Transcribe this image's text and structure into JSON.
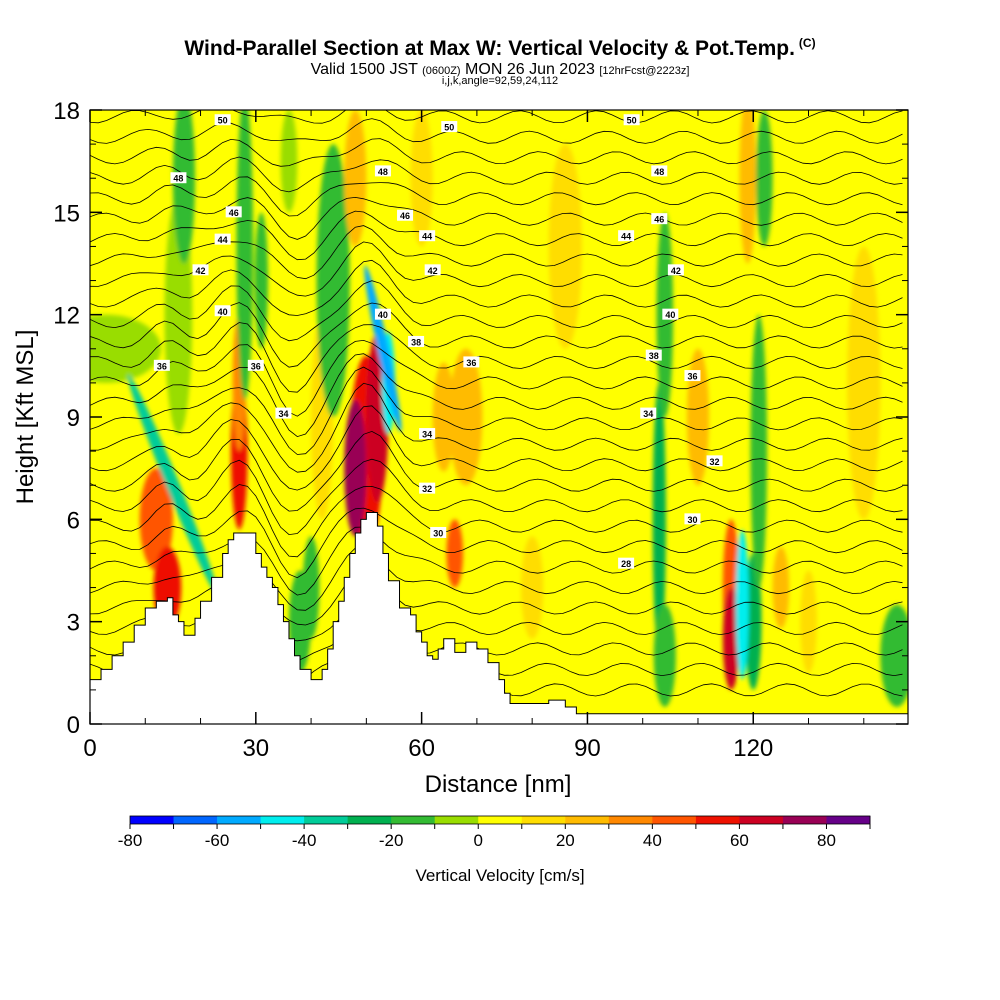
{
  "header": {
    "title": "Wind-Parallel Section at Max W: Vertical Velocity & Pot.Temp.",
    "copyright": "(C)",
    "valid_prefix": "Valid 1500 JST",
    "valid_utc": "(0600Z)",
    "valid_date": "MON 26 Jun 2023",
    "forecast": "[12hrFcst@2223z]",
    "params": "i,j,k,angle=92,59,24,112"
  },
  "chart_data": {
    "type": "heatmap",
    "xlabel": "Distance [nm]",
    "ylabel": "Height [Kft MSL]",
    "xlim": [
      0,
      148
    ],
    "ylim": [
      0,
      18
    ],
    "x_ticks": [
      0,
      30,
      60,
      90,
      120
    ],
    "y_ticks": [
      0,
      3,
      6,
      9,
      12,
      15,
      18
    ],
    "colorbar": {
      "label": "Vertical Velocity [cm/s]",
      "min": -80,
      "max": 90,
      "step": 10,
      "tick_labels": [
        -80,
        -60,
        -40,
        -20,
        0,
        20,
        40,
        60,
        80
      ],
      "colors": [
        "#0000ff",
        "#0066ff",
        "#00aaff",
        "#00eeee",
        "#00cc99",
        "#00b050",
        "#33bb33",
        "#99dd00",
        "#ffff00",
        "#ffdd00",
        "#ffbb00",
        "#ff8800",
        "#ff5500",
        "#ee1100",
        "#cc0022",
        "#990055",
        "#660088"
      ]
    },
    "terrain": [
      [
        0,
        1.3
      ],
      [
        2,
        1.6
      ],
      [
        4,
        2.0
      ],
      [
        6,
        2.4
      ],
      [
        8,
        2.9
      ],
      [
        10,
        3.4
      ],
      [
        12,
        3.6
      ],
      [
        14,
        3.7
      ],
      [
        15,
        3.2
      ],
      [
        16,
        3.0
      ],
      [
        17,
        2.6
      ],
      [
        18,
        2.6
      ],
      [
        19,
        3.1
      ],
      [
        20,
        3.6
      ],
      [
        22,
        4.3
      ],
      [
        24,
        5.0
      ],
      [
        25,
        5.4
      ],
      [
        26,
        5.6
      ],
      [
        29,
        5.6
      ],
      [
        30,
        5.0
      ],
      [
        31,
        4.6
      ],
      [
        32,
        4.3
      ],
      [
        33,
        4.0
      ],
      [
        34,
        3.5
      ],
      [
        35,
        3.0
      ],
      [
        36,
        2.5
      ],
      [
        37,
        2.0
      ],
      [
        38,
        1.6
      ],
      [
        40,
        1.3
      ],
      [
        42,
        1.6
      ],
      [
        43,
        2.2
      ],
      [
        44,
        3.0
      ],
      [
        45,
        3.6
      ],
      [
        46,
        4.3
      ],
      [
        47,
        5.0
      ],
      [
        48,
        5.6
      ],
      [
        49,
        6.0
      ],
      [
        50,
        6.2
      ],
      [
        51,
        6.2
      ],
      [
        52,
        5.8
      ],
      [
        53,
        5.0
      ],
      [
        54,
        4.2
      ],
      [
        56,
        3.4
      ],
      [
        58,
        3.2
      ],
      [
        59,
        2.7
      ],
      [
        60,
        2.4
      ],
      [
        61,
        2.0
      ],
      [
        62,
        1.9
      ],
      [
        63,
        2.2
      ],
      [
        64,
        2.5
      ],
      [
        66,
        2.1
      ],
      [
        68,
        2.4
      ],
      [
        70,
        2.2
      ],
      [
        72,
        1.8
      ],
      [
        74,
        1.3
      ],
      [
        75,
        0.9
      ],
      [
        76,
        0.6
      ],
      [
        80,
        0.6
      ],
      [
        83,
        0.7
      ],
      [
        86,
        0.5
      ],
      [
        88,
        0.3
      ],
      [
        148,
        0.3
      ]
    ],
    "theta_contour_labels": [
      {
        "x": 24,
        "y": 17.7,
        "text": "50"
      },
      {
        "x": 65,
        "y": 17.5,
        "text": "50"
      },
      {
        "x": 98,
        "y": 17.7,
        "text": "50"
      },
      {
        "x": 16,
        "y": 16.0,
        "text": "48"
      },
      {
        "x": 53,
        "y": 16.2,
        "text": "48"
      },
      {
        "x": 103,
        "y": 16.2,
        "text": "48"
      },
      {
        "x": 26,
        "y": 15.0,
        "text": "46"
      },
      {
        "x": 57,
        "y": 14.9,
        "text": "46"
      },
      {
        "x": 103,
        "y": 14.8,
        "text": "46"
      },
      {
        "x": 24,
        "y": 14.2,
        "text": "44"
      },
      {
        "x": 61,
        "y": 14.3,
        "text": "44"
      },
      {
        "x": 97,
        "y": 14.3,
        "text": "44"
      },
      {
        "x": 20,
        "y": 13.3,
        "text": "42"
      },
      {
        "x": 62,
        "y": 13.3,
        "text": "42"
      },
      {
        "x": 106,
        "y": 13.3,
        "text": "42"
      },
      {
        "x": 24,
        "y": 12.1,
        "text": "40"
      },
      {
        "x": 53,
        "y": 12.0,
        "text": "40"
      },
      {
        "x": 105,
        "y": 12.0,
        "text": "40"
      },
      {
        "x": 59,
        "y": 11.2,
        "text": "38"
      },
      {
        "x": 102,
        "y": 10.8,
        "text": "38"
      },
      {
        "x": 13,
        "y": 10.5,
        "text": "36"
      },
      {
        "x": 30,
        "y": 10.5,
        "text": "36"
      },
      {
        "x": 69,
        "y": 10.6,
        "text": "36"
      },
      {
        "x": 109,
        "y": 10.2,
        "text": "36"
      },
      {
        "x": 35,
        "y": 9.1,
        "text": "34"
      },
      {
        "x": 61,
        "y": 8.5,
        "text": "34"
      },
      {
        "x": 101,
        "y": 9.1,
        "text": "34"
      },
      {
        "x": 113,
        "y": 7.7,
        "text": "32"
      },
      {
        "x": 61,
        "y": 6.9,
        "text": "32"
      },
      {
        "x": 109,
        "y": 6.0,
        "text": "30"
      },
      {
        "x": 63,
        "y": 5.6,
        "text": "30"
      },
      {
        "x": 97,
        "y": 4.7,
        "text": "28"
      }
    ]
  }
}
